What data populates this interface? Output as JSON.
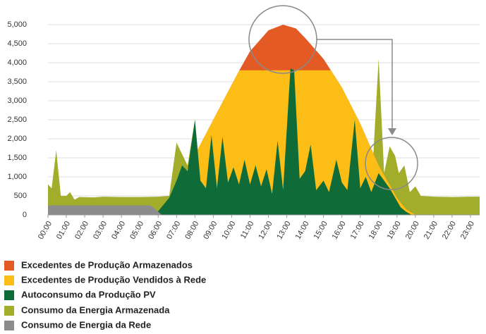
{
  "chart_data": {
    "type": "area",
    "xlim": [
      0,
      23.5
    ],
    "xticks": [
      {
        "value": 0,
        "label": "00:00"
      },
      {
        "value": 1,
        "label": "01:00"
      },
      {
        "value": 2,
        "label": "02:00"
      },
      {
        "value": 3,
        "label": "03:00"
      },
      {
        "value": 4,
        "label": "04:00"
      },
      {
        "value": 5,
        "label": "05:00"
      },
      {
        "value": 6,
        "label": "06:00"
      },
      {
        "value": 7,
        "label": "07:00"
      },
      {
        "value": 8,
        "label": "08:00"
      },
      {
        "value": 9,
        "label": "09:00"
      },
      {
        "value": 10,
        "label": "10:00"
      },
      {
        "value": 11,
        "label": "11:00"
      },
      {
        "value": 12,
        "label": "12:00"
      },
      {
        "value": 13,
        "label": "13:00"
      },
      {
        "value": 14,
        "label": "14:00"
      },
      {
        "value": 15,
        "label": "15:00"
      },
      {
        "value": 16,
        "label": "16:00"
      },
      {
        "value": 17,
        "label": "17:00"
      },
      {
        "value": 18,
        "label": "18:00"
      },
      {
        "value": 19,
        "label": "19:00"
      },
      {
        "value": 20,
        "label": "20:00"
      },
      {
        "value": 21,
        "label": "21:00"
      },
      {
        "value": 22,
        "label": "22:00"
      },
      {
        "value": 23,
        "label": "23:00"
      }
    ],
    "ylim": [
      0,
      5000
    ],
    "yticks": [
      0,
      500,
      {
        "value": 1000,
        "label": "1,000"
      },
      {
        "value": 1500,
        "label": "1,500"
      },
      {
        "value": 2000,
        "label": "2,000"
      },
      {
        "value": 2500,
        "label": "2,500"
      },
      {
        "value": 3000,
        "label": "3,000"
      },
      {
        "value": 3500,
        "label": "3,500"
      },
      {
        "value": 4000,
        "label": "4,000"
      },
      {
        "value": 4500,
        "label": "4,500"
      },
      {
        "value": 5000,
        "label": "5,000"
      }
    ],
    "grid": true,
    "series": [
      {
        "name": "Excedentes de Produção Armazenados",
        "color": "#e35a25",
        "x": [
          6.0,
          6.5,
          7,
          8,
          9,
          10,
          10.42,
          11,
          12,
          12.8,
          13.5,
          14,
          15,
          15.4,
          16,
          17,
          18,
          19,
          19.5,
          20
        ],
        "values": [
          0,
          200,
          650,
          1580,
          2500,
          3420,
          3800,
          4300,
          4850,
          5000,
          4900,
          4650,
          4100,
          3800,
          3350,
          2400,
          1300,
          450,
          150,
          0
        ]
      },
      {
        "name": "Excedentes de Produção Vendidos à Rede",
        "color": "#fbbd16",
        "x": [
          6.0,
          6.5,
          7,
          8,
          9,
          10,
          10.42,
          15.4,
          16,
          17,
          18,
          19,
          19.5,
          20
        ],
        "values": [
          0,
          200,
          650,
          1580,
          2500,
          3420,
          3800,
          3800,
          3350,
          2400,
          1300,
          450,
          150,
          0
        ]
      },
      {
        "name": "Autoconsumo da Produção PV",
        "color": "#0f6b37",
        "x": [
          5.5,
          6.0,
          6.6,
          7.0,
          7.3,
          7.6,
          8.0,
          8.3,
          8.6,
          8.9,
          9.2,
          9.5,
          9.8,
          10.1,
          10.4,
          10.7,
          11.0,
          11.3,
          11.6,
          11.9,
          12.2,
          12.5,
          12.8,
          13.2,
          13.4,
          13.7,
          14.0,
          14.3,
          14.6,
          15.0,
          15.3,
          15.7,
          16.0,
          16.3,
          16.7,
          17.0,
          17.3,
          17.6,
          18.0,
          18.3,
          18.6,
          18.9,
          19.2,
          19.5,
          19.8
        ],
        "values": [
          0,
          100,
          450,
          900,
          1300,
          1150,
          2500,
          900,
          700,
          2100,
          700,
          2050,
          850,
          1250,
          800,
          1450,
          800,
          1300,
          750,
          1200,
          550,
          1950,
          650,
          3850,
          3800,
          950,
          1150,
          1850,
          650,
          900,
          600,
          1450,
          850,
          650,
          2500,
          700,
          1000,
          600,
          1100,
          900,
          700,
          450,
          200,
          80,
          0
        ]
      },
      {
        "name": "Consumo da Energia Armazenada",
        "color": "#a3ad2c",
        "x": [
          0,
          0.2,
          0.45,
          0.7,
          1.0,
          1.2,
          1.45,
          1.7,
          2.5,
          3,
          4,
          5,
          6,
          6.6,
          7.0,
          7.3,
          7.6,
          8.0,
          8.3,
          8.6,
          8.9,
          9.2,
          9.5,
          9.8,
          10.1,
          10.4,
          10.7,
          11.0,
          11.3,
          11.6,
          11.9,
          12.2,
          12.5,
          12.8,
          13.2,
          13.4,
          13.7,
          14.0,
          14.3,
          14.6,
          15.0,
          15.3,
          15.7,
          16.0,
          16.3,
          16.7,
          17.0,
          17.3,
          17.6,
          18.0,
          18.3,
          18.6,
          18.9,
          19.1,
          19.4,
          19.7,
          20.0,
          20.3,
          21,
          22,
          23,
          23.5
        ],
        "values": [
          800,
          700,
          1700,
          500,
          500,
          600,
          400,
          470,
          460,
          480,
          470,
          470,
          480,
          500,
          1900,
          1600,
          1300,
          2500,
          900,
          700,
          2100,
          700,
          2050,
          850,
          1250,
          800,
          1450,
          800,
          1300,
          750,
          1200,
          550,
          1950,
          650,
          3850,
          3800,
          950,
          1150,
          1850,
          650,
          900,
          600,
          1450,
          850,
          650,
          2500,
          700,
          1000,
          600,
          4100,
          1100,
          1800,
          1550,
          1100,
          1300,
          600,
          750,
          500,
          480,
          470,
          480,
          480
        ]
      },
      {
        "name": "Consumo de Energia da Rede",
        "color": "#8c8c8c",
        "x": [
          0,
          5.6,
          6.2
        ],
        "values": [
          250,
          250,
          0
        ]
      }
    ]
  }
}
